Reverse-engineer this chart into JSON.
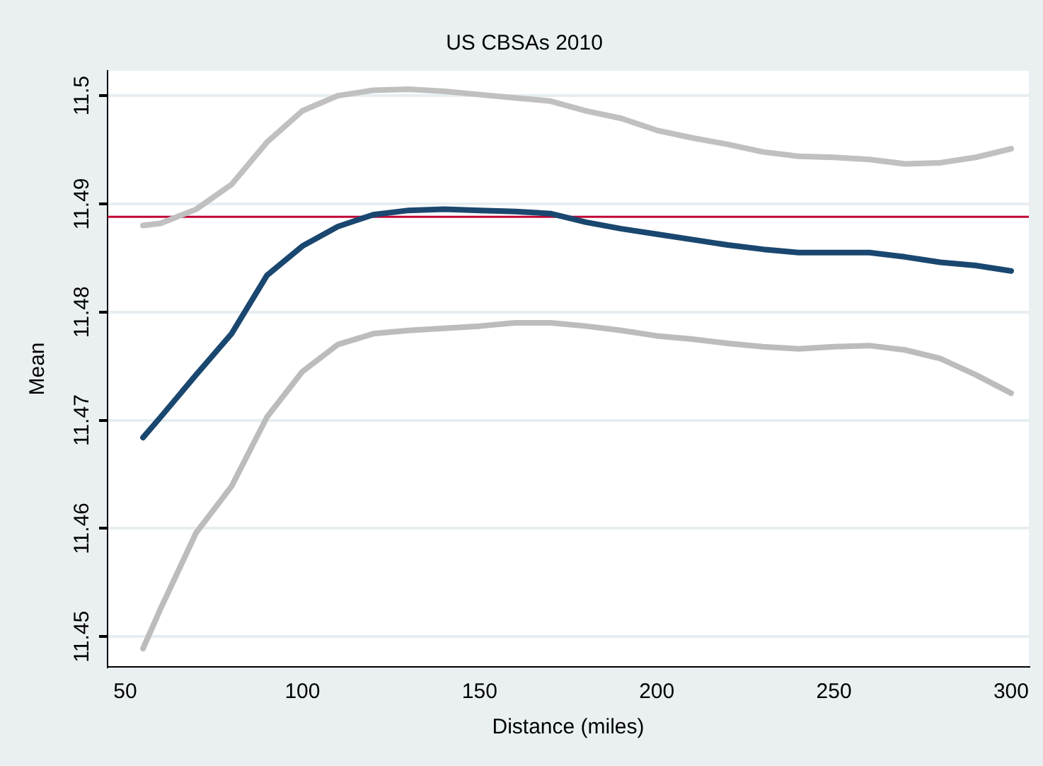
{
  "chart_data": {
    "type": "line",
    "title": "US CBSAs 2010",
    "xlabel": "Distance (miles)",
    "ylabel": "Mean",
    "x": [
      55,
      60,
      70,
      80,
      90,
      100,
      110,
      120,
      130,
      140,
      150,
      160,
      170,
      180,
      190,
      200,
      210,
      220,
      230,
      240,
      250,
      260,
      270,
      280,
      290,
      300
    ],
    "series": [
      {
        "color": "#c0c0c0",
        "values": [
          11.488,
          11.4882,
          11.4895,
          11.4918,
          11.4957,
          11.4986,
          11.5,
          11.5005,
          11.5006,
          11.5004,
          11.5001,
          11.4998,
          11.4995,
          11.4986,
          11.4979,
          11.4968,
          11.4961,
          11.4955,
          11.4948,
          11.4944,
          11.4943,
          11.4941,
          11.4937,
          11.4938,
          11.4943,
          11.4951
        ]
      },
      {
        "color": "#1a476f",
        "values": [
          11.4684,
          11.4703,
          11.4742,
          11.478,
          11.4834,
          11.4861,
          11.4879,
          11.489,
          11.4894,
          11.4895,
          11.4894,
          11.4893,
          11.4891,
          11.4883,
          11.4877,
          11.4872,
          11.4867,
          11.4862,
          11.4858,
          11.4855,
          11.4855,
          11.4855,
          11.4851,
          11.4846,
          11.4843,
          11.4838
        ]
      },
      {
        "color": "#bcbcbc",
        "values": [
          11.4489,
          11.4526,
          11.4596,
          11.4639,
          11.4703,
          11.4745,
          11.477,
          11.478,
          11.4783,
          11.4785,
          11.4787,
          11.479,
          11.479,
          11.4787,
          11.4783,
          11.4778,
          11.4775,
          11.4771,
          11.4768,
          11.4766,
          11.4768,
          11.4769,
          11.4765,
          11.4757,
          11.4742,
          11.4725
        ]
      }
    ],
    "xlim": [
      45,
      305
    ],
    "xticks": [
      50,
      100,
      150,
      200,
      250,
      300
    ],
    "ylim": [
      11.4472,
      11.5023
    ],
    "yticks": [
      11.45,
      11.46,
      11.47,
      11.48,
      11.49,
      11.5
    ],
    "ref_lines": [
      {
        "axis": "y",
        "value": 11.4888,
        "color": "#c10534"
      }
    ],
    "grid": "y",
    "legend": false,
    "marker": "none",
    "line_style": "solid"
  }
}
